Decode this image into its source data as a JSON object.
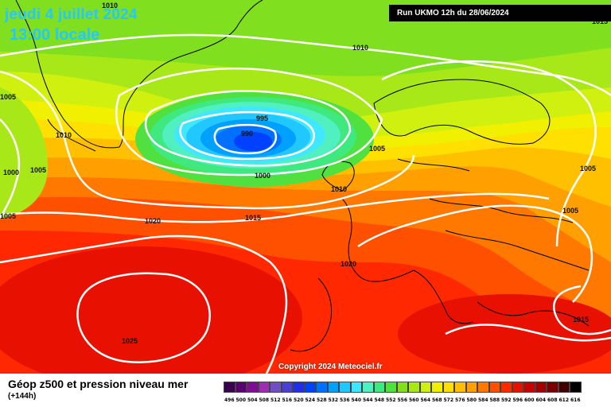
{
  "header": {
    "date": "jeudi 4 juillet 2024",
    "time": "13:00  locale",
    "run": "Run UKMO 12h du 28/06/2024"
  },
  "copyright": "Copyright 2024 Meteociel.fr",
  "legend": {
    "title": "Géop z500 et pression niveau mer",
    "subtitle": "(+144h)",
    "ticks": [
      "496",
      "500",
      "504",
      "508",
      "512",
      "516",
      "520",
      "524",
      "528",
      "532",
      "536",
      "540",
      "544",
      "548",
      "552",
      "556",
      "560",
      "564",
      "568",
      "572",
      "576",
      "580",
      "584",
      "588",
      "592",
      "596",
      "600",
      "604",
      "608",
      "612",
      "616"
    ],
    "colors": [
      "#3a0050",
      "#5a006e",
      "#7a1090",
      "#9a30b0",
      "#7050c0",
      "#4a40d0",
      "#2030e0",
      "#0040ff",
      "#0070ff",
      "#00a0ff",
      "#20c8ff",
      "#40e8ff",
      "#50f0c0",
      "#40e880",
      "#50e040",
      "#80e020",
      "#a8e818",
      "#d0f010",
      "#f0f000",
      "#ffe000",
      "#ffc000",
      "#ffa000",
      "#ff7800",
      "#ff5000",
      "#ff2800",
      "#e81000",
      "#c80000",
      "#a00000",
      "#780000",
      "#400000",
      "#000000"
    ]
  },
  "isobar_labels": [
    "1010",
    "1010",
    "1015",
    "1010",
    "995",
    "990",
    "1005",
    "1000",
    "1010",
    "1010",
    "1005",
    "1005",
    "1000",
    "1005",
    "1020",
    "1015",
    "1020",
    "1025",
    "1005",
    "1005",
    "1015"
  ],
  "map_colors": {
    "isobar": "#ffffff",
    "coastline": "#000000"
  }
}
